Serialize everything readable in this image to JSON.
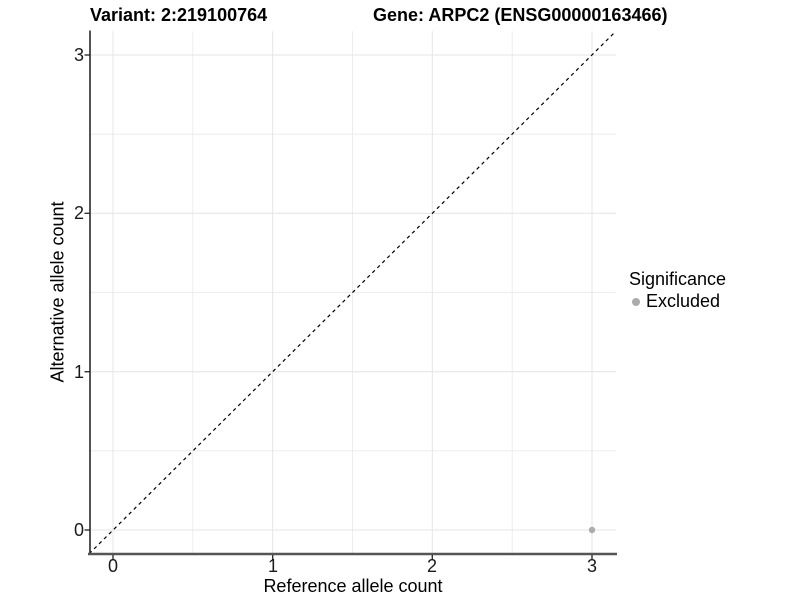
{
  "chart_data": {
    "type": "scatter",
    "title_left": "Variant: 2:219100764",
    "title_right": "Gene: ARPC2 (ENSG00000163466)",
    "xlabel": "Reference allele count",
    "ylabel": "Alternative allele count",
    "x_ticks": [
      "0",
      "1",
      "2",
      "3"
    ],
    "y_ticks": [
      "0",
      "1",
      "2",
      "3"
    ],
    "xlim": [
      -0.15,
      3.15
    ],
    "ylim": [
      -0.15,
      3.15
    ],
    "grid": {
      "major_color": "#e4e4e4",
      "minor_color": "#ededed",
      "minor_interval": 0.5
    },
    "reference_line": {
      "type": "identity",
      "equation": "y = x",
      "style": "dashed",
      "color": "#000000"
    },
    "legend": {
      "title": "Significance",
      "position": "right",
      "entries": [
        {
          "label": "Excluded",
          "color": "#ababab"
        }
      ]
    },
    "series": [
      {
        "name": "Excluded",
        "color": "#acacac",
        "points": [
          {
            "x": 3,
            "y": 0
          }
        ]
      }
    ]
  }
}
